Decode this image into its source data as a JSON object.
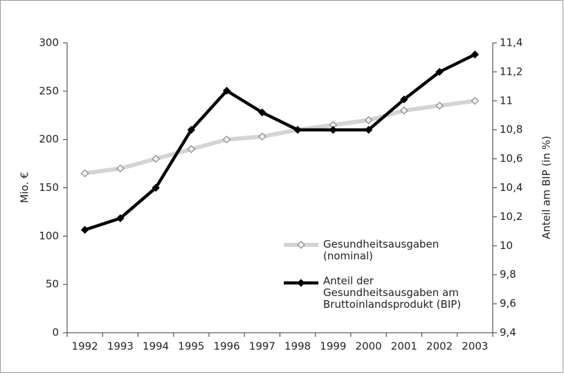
{
  "chart_data": {
    "type": "line",
    "categories": [
      "1992",
      "1993",
      "1994",
      "1995",
      "1996",
      "1997",
      "1998",
      "1999",
      "2000",
      "2001",
      "2002",
      "2003"
    ],
    "series": [
      {
        "name": "Gesundheitsausgaben (nominal)",
        "color": "#d4d4d4",
        "axis": "y",
        "values": [
          165,
          170,
          180,
          190,
          200,
          203,
          210,
          215,
          220,
          230,
          235,
          240
        ]
      },
      {
        "name": "Anteil der Gesundheitsausgaben am Bruttoinlandsprodukt (BIP)",
        "color": "#000000",
        "axis": "y2",
        "values": [
          10.11,
          10.19,
          10.4,
          10.8,
          11.07,
          10.92,
          10.8,
          10.8,
          10.8,
          11.01,
          11.2,
          11.32
        ]
      }
    ],
    "ylabel": "Mio. €",
    "y2label": "Anteil am BIP (in %)",
    "ylim": [
      0,
      300
    ],
    "yticks": [
      0,
      50,
      100,
      150,
      200,
      250,
      300
    ],
    "y2lim": [
      9.4,
      11.4
    ],
    "y2ticks": [
      {
        "value": 9.4,
        "label": "9,4"
      },
      {
        "value": 9.6,
        "label": "9,6"
      },
      {
        "value": 9.8,
        "label": "9,8"
      },
      10,
      {
        "value": 10.2,
        "label": "10,2"
      },
      {
        "value": 10.4,
        "label": "10,4"
      },
      {
        "value": 10.6,
        "label": "10,6"
      },
      {
        "value": 10.8,
        "label": "10,8"
      },
      11,
      {
        "value": 11.2,
        "label": "11,2"
      },
      {
        "value": 11.4,
        "label": "11,4"
      }
    ],
    "grid": false
  }
}
